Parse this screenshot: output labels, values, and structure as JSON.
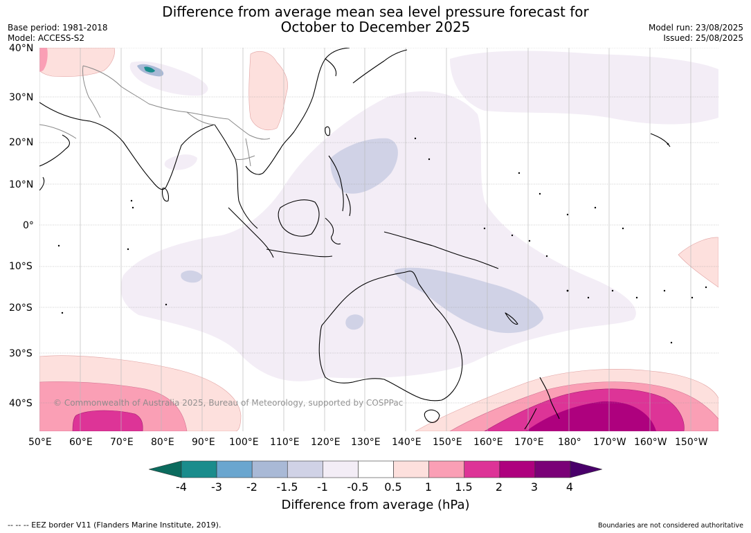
{
  "title": {
    "line1": "Difference from average mean sea level pressure forecast for",
    "line2": "October to December 2025"
  },
  "meta_left": {
    "base_period": "Base period: 1981-2018",
    "model": "Model: ACCESS-S2"
  },
  "meta_right": {
    "model_run": "Model run: 23/08/2025",
    "issued": "Issued: 25/08/2025"
  },
  "map": {
    "lat_labels": [
      "40°N",
      "30°N",
      "20°N",
      "10°N",
      "0°",
      "10°S",
      "20°S",
      "30°S",
      "40°S"
    ],
    "lon_labels": [
      "50°E",
      "60°E",
      "70°E",
      "80°E",
      "90°E",
      "100°E",
      "110°E",
      "120°E",
      "130°E",
      "140°E",
      "150°E",
      "160°E",
      "170°E",
      "180°",
      "170°W",
      "160°W",
      "150°W"
    ],
    "watermark": "© Commonwealth of Australia 2025, Bureau of Meteorology, supported by COSPPac"
  },
  "colorbar": {
    "ticks": [
      "-4",
      "-3",
      "-2",
      "-1.5",
      "-1",
      "-0.5",
      "0.5",
      "1",
      "1.5",
      "2",
      "3",
      "4"
    ],
    "colors": [
      "#1a8c8c",
      "#6aa6cf",
      "#a9b9d6",
      "#d0d2e6",
      "#f3edf6",
      "#ffffff",
      "#fde0dd",
      "#fa9fb5",
      "#dd3497",
      "#ae017e",
      "#7a0177"
    ],
    "low_extend_color": "#0b6b5e",
    "high_extend_color": "#49006a",
    "label": "Difference from average (hPa)"
  },
  "footer": {
    "left": "--  --  -- EEZ border V11 (Flanders Marine Institute, 2019).",
    "right": "Boundaries are not considered authoritative"
  }
}
